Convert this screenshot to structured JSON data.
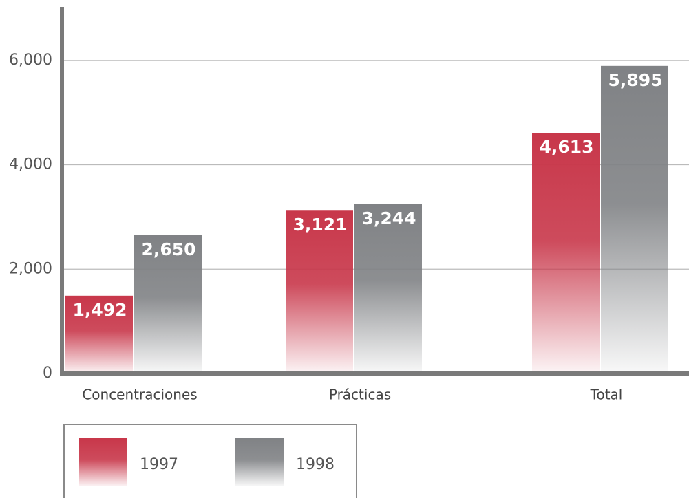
{
  "chart_data": {
    "type": "bar",
    "categories": [
      "Concentraciones",
      "Prácticas",
      "Total"
    ],
    "series": [
      {
        "name": "1997",
        "color": "#c8374a",
        "values": [
          1492,
          3121,
          4613
        ],
        "value_labels": [
          "1,492",
          "3,121",
          "4,613"
        ]
      },
      {
        "name": "1998",
        "color": "#808285",
        "values": [
          2650,
          3244,
          5895
        ],
        "value_labels": [
          "2,650",
          "3,244",
          "5,895"
        ]
      }
    ],
    "ylim": [
      0,
      7000
    ],
    "yticks": [
      0,
      {
        "value": 2000,
        "label": "2,000"
      },
      {
        "value": 4000,
        "label": "4,000"
      },
      {
        "value": 6000,
        "label": "6,000"
      }
    ],
    "grid": true
  }
}
